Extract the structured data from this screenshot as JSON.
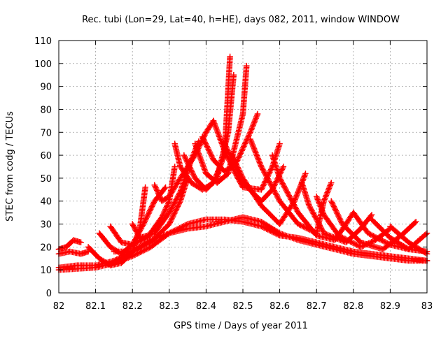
{
  "chart_data": {
    "type": "scatter",
    "title": "Rec. tubi (Lon=29, Lat=40, h=HE), days 082, 2011, window WINDOW",
    "xlabel": "GPS time / Days of year 2011",
    "ylabel": "STEC from codg / TECUs",
    "xlim": [
      82,
      83
    ],
    "ylim": [
      0,
      110
    ],
    "grid": true,
    "marker": "+",
    "color": "#ff0000",
    "x_ticks": [
      82,
      82.1,
      82.2,
      82.3,
      82.4,
      82.5,
      82.6,
      82.7,
      82.8,
      82.9,
      83
    ],
    "x_tick_labels": [
      "82",
      "82.1",
      "82.2",
      "82.3",
      "82.4",
      "82.5",
      "82.6",
      "82.7",
      "82.8",
      "82.9",
      "83"
    ],
    "y_ticks": [
      0,
      10,
      20,
      30,
      40,
      50,
      60,
      70,
      80,
      90,
      100,
      110
    ],
    "y_tick_labels": [
      "0",
      "10",
      "20",
      "30",
      "40",
      "50",
      "60",
      "70",
      "80",
      "90",
      "100",
      "110"
    ],
    "series": [
      {
        "values": [
          [
            82.0,
            10
          ],
          [
            82.05,
            10.5
          ],
          [
            82.1,
            11
          ],
          [
            82.15,
            13
          ],
          [
            82.2,
            16
          ],
          [
            82.25,
            20
          ],
          [
            82.3,
            26
          ],
          [
            82.35,
            30
          ],
          [
            82.4,
            32
          ],
          [
            82.45,
            32
          ],
          [
            82.5,
            31
          ],
          [
            82.55,
            29
          ],
          [
            82.6,
            25
          ],
          [
            82.65,
            24
          ],
          [
            82.7,
            22
          ],
          [
            82.75,
            20
          ],
          [
            82.8,
            18
          ],
          [
            82.85,
            17
          ],
          [
            82.9,
            16
          ],
          [
            82.95,
            15
          ],
          [
            83.0,
            14
          ]
        ]
      },
      {
        "values": [
          [
            82.0,
            11
          ],
          [
            82.05,
            12
          ],
          [
            82.1,
            12
          ],
          [
            82.15,
            14
          ],
          [
            82.2,
            18
          ],
          [
            82.25,
            23
          ],
          [
            82.3,
            26
          ],
          [
            82.35,
            28
          ],
          [
            82.4,
            29
          ],
          [
            82.45,
            31
          ],
          [
            82.5,
            33
          ],
          [
            82.55,
            31
          ],
          [
            82.6,
            26
          ],
          [
            82.65,
            23
          ],
          [
            82.7,
            21
          ],
          [
            82.75,
            19
          ],
          [
            82.8,
            17
          ],
          [
            82.85,
            16
          ],
          [
            82.9,
            15
          ],
          [
            82.95,
            14
          ],
          [
            83.0,
            14
          ]
        ]
      },
      {
        "values": [
          [
            82.0,
            19
          ],
          [
            82.02,
            20
          ],
          [
            82.04,
            23
          ],
          [
            82.06,
            22
          ]
        ]
      },
      {
        "values": [
          [
            82.0,
            17
          ],
          [
            82.03,
            18
          ],
          [
            82.06,
            17
          ],
          [
            82.08,
            18
          ]
        ]
      },
      {
        "values": [
          [
            82.08,
            20
          ],
          [
            82.11,
            15
          ],
          [
            82.14,
            12
          ],
          [
            82.17,
            13
          ],
          [
            82.2,
            18
          ],
          [
            82.22,
            28
          ],
          [
            82.235,
            46
          ]
        ]
      },
      {
        "values": [
          [
            82.11,
            26
          ],
          [
            82.14,
            20
          ],
          [
            82.17,
            17
          ],
          [
            82.2,
            21
          ],
          [
            82.23,
            30
          ],
          [
            82.26,
            40
          ],
          [
            82.29,
            46
          ]
        ]
      },
      {
        "values": [
          [
            82.14,
            29
          ],
          [
            82.17,
            22
          ],
          [
            82.2,
            21
          ],
          [
            82.24,
            24
          ],
          [
            82.28,
            33
          ],
          [
            82.3,
            40
          ],
          [
            82.315,
            55
          ]
        ]
      },
      {
        "values": [
          [
            82.15,
            18
          ],
          [
            82.2,
            18
          ],
          [
            82.25,
            22
          ],
          [
            82.3,
            30
          ],
          [
            82.33,
            40
          ],
          [
            82.35,
            50
          ]
        ]
      },
      {
        "values": [
          [
            82.2,
            30
          ],
          [
            82.22,
            24
          ],
          [
            82.26,
            26
          ],
          [
            82.3,
            35
          ],
          [
            82.33,
            44
          ],
          [
            82.36,
            58
          ],
          [
            82.38,
            66
          ]
        ]
      },
      {
        "values": [
          [
            82.26,
            47
          ],
          [
            82.28,
            40
          ],
          [
            82.3,
            42
          ],
          [
            82.33,
            50
          ],
          [
            82.37,
            60
          ],
          [
            82.4,
            70
          ],
          [
            82.42,
            75
          ]
        ]
      },
      {
        "values": [
          [
            82.315,
            65
          ],
          [
            82.33,
            55
          ],
          [
            82.36,
            48
          ],
          [
            82.39,
            45
          ],
          [
            82.42,
            48
          ],
          [
            82.45,
            60
          ],
          [
            82.465,
            103
          ]
        ]
      },
      {
        "values": [
          [
            82.34,
            60
          ],
          [
            82.37,
            50
          ],
          [
            82.4,
            45
          ],
          [
            82.43,
            50
          ],
          [
            82.46,
            70
          ],
          [
            82.475,
            95
          ]
        ]
      },
      {
        "values": [
          [
            82.37,
            65
          ],
          [
            82.4,
            52
          ],
          [
            82.43,
            48
          ],
          [
            82.46,
            52
          ],
          [
            82.5,
            78
          ],
          [
            82.51,
            99
          ]
        ]
      },
      {
        "values": [
          [
            82.39,
            68
          ],
          [
            82.42,
            58
          ],
          [
            82.45,
            53
          ],
          [
            82.48,
            56
          ],
          [
            82.52,
            70
          ],
          [
            82.54,
            78
          ]
        ]
      },
      {
        "values": [
          [
            82.42,
            75
          ],
          [
            82.45,
            62
          ],
          [
            82.48,
            52
          ],
          [
            82.5,
            46
          ],
          [
            82.55,
            45
          ],
          [
            82.58,
            55
          ],
          [
            82.6,
            65
          ]
        ]
      },
      {
        "values": [
          [
            82.45,
            65
          ],
          [
            82.48,
            55
          ],
          [
            82.5,
            48
          ],
          [
            82.55,
            40
          ],
          [
            82.58,
            45
          ],
          [
            82.61,
            55
          ]
        ]
      },
      {
        "values": [
          [
            82.47,
            60
          ],
          [
            82.5,
            50
          ],
          [
            82.55,
            38
          ],
          [
            82.6,
            30
          ],
          [
            82.64,
            40
          ],
          [
            82.67,
            52
          ]
        ]
      },
      {
        "values": [
          [
            82.52,
            67
          ],
          [
            82.55,
            55
          ],
          [
            82.6,
            40
          ],
          [
            82.65,
            30
          ],
          [
            82.7,
            26
          ],
          [
            82.72,
            40
          ],
          [
            82.74,
            48
          ]
        ]
      },
      {
        "values": [
          [
            82.58,
            60
          ],
          [
            82.6,
            50
          ],
          [
            82.65,
            35
          ],
          [
            82.7,
            25
          ],
          [
            82.75,
            23
          ],
          [
            82.78,
            30
          ],
          [
            82.8,
            35
          ]
        ]
      },
      {
        "values": [
          [
            82.66,
            48
          ],
          [
            82.68,
            38
          ],
          [
            82.72,
            26
          ],
          [
            82.78,
            22
          ],
          [
            82.82,
            28
          ],
          [
            82.85,
            34
          ]
        ]
      },
      {
        "values": [
          [
            82.7,
            42
          ],
          [
            82.72,
            34
          ],
          [
            82.76,
            25
          ],
          [
            82.82,
            20
          ],
          [
            82.86,
            23
          ],
          [
            82.9,
            28
          ]
        ]
      },
      {
        "values": [
          [
            82.74,
            40
          ],
          [
            82.77,
            30
          ],
          [
            82.82,
            22
          ],
          [
            82.88,
            19
          ],
          [
            82.93,
            25
          ],
          [
            82.97,
            31
          ]
        ]
      },
      {
        "values": [
          [
            82.8,
            35
          ],
          [
            82.84,
            26
          ],
          [
            82.9,
            21
          ],
          [
            82.95,
            19
          ],
          [
            83.0,
            26
          ]
        ]
      },
      {
        "values": [
          [
            82.85,
            32
          ],
          [
            82.9,
            24
          ],
          [
            82.95,
            19
          ],
          [
            83.0,
            18
          ]
        ]
      },
      {
        "values": [
          [
            82.9,
            29
          ],
          [
            82.95,
            22
          ],
          [
            83.0,
            17
          ]
        ]
      }
    ]
  }
}
